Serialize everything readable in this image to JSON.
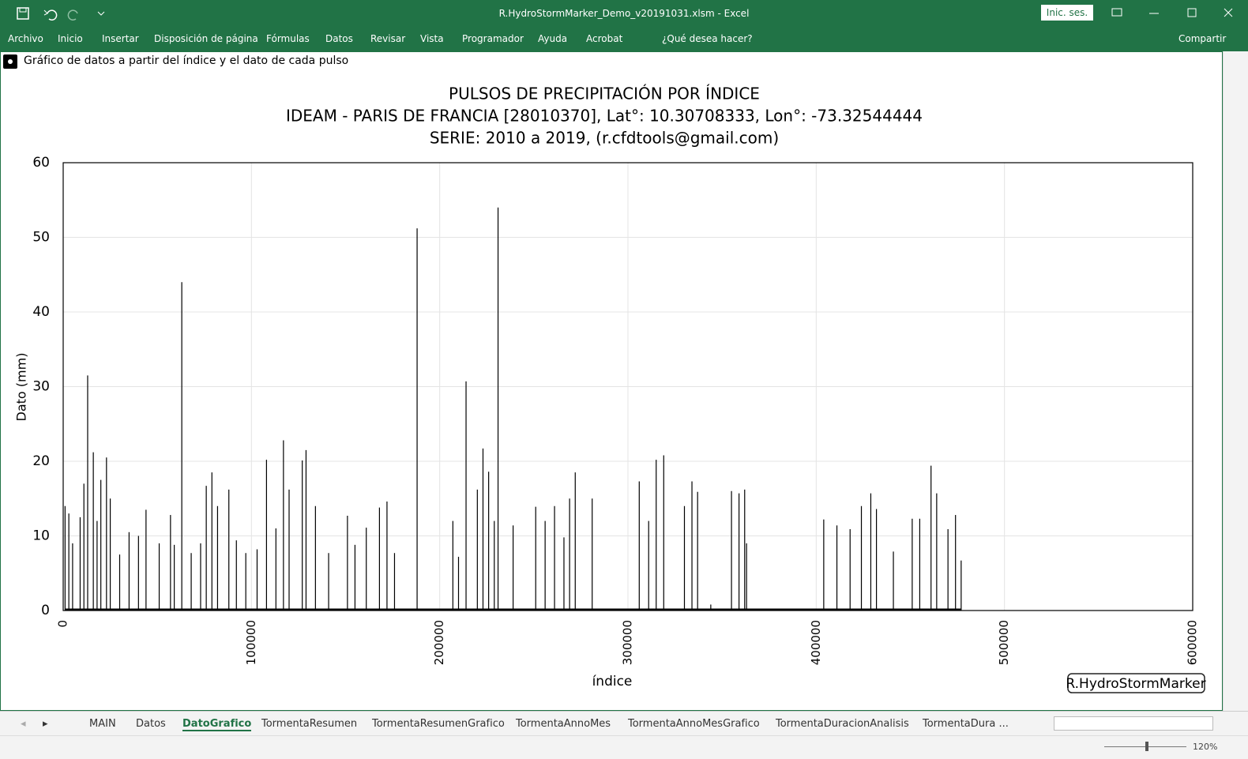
{
  "window": {
    "title": "R.HydroStormMarker_Demo_v20191031.xlsm  -  Excel",
    "signin": "Inic. ses."
  },
  "ribbon": {
    "tabs": [
      "Archivo",
      "Inicio",
      "Insertar",
      "Disposición de página",
      "Fórmulas",
      "Datos",
      "Revisar",
      "Vista",
      "Programador",
      "Ayuda",
      "Acrobat"
    ],
    "search": "¿Qué desea hacer?",
    "share": "Compartir"
  },
  "sheet": {
    "caption": "Gráfico de datos a partir del índice y el dato de cada pulso",
    "logo": "R.HydroStormMarker"
  },
  "chart_data": {
    "type": "stem",
    "title": [
      "PULSOS DE PRECIPITACIÓN POR ÍNDICE",
      "IDEAM - PARIS DE FRANCIA [28010370], Lat°: 10.30708333, Lon°: -73.32544444",
      "SERIE: 2010 a 2019, (r.cfdtools@gmail.com)"
    ],
    "x_label": "índice",
    "y_label": "Dato (mm)",
    "x": [
      1000,
      3000,
      5000,
      9000,
      11000,
      13000,
      16000,
      18000,
      20000,
      23000,
      25000,
      30000,
      35000,
      40000,
      44000,
      51000,
      57000,
      59000,
      63000,
      68000,
      73000,
      76000,
      79000,
      82000,
      88000,
      92000,
      97000,
      103000,
      108000,
      113000,
      117000,
      120000,
      127000,
      129000,
      134000,
      141000,
      151000,
      155000,
      161000,
      168000,
      172000,
      176000,
      188000,
      207000,
      210000,
      214000,
      220000,
      223000,
      226000,
      229000,
      231000,
      239000,
      251000,
      256000,
      261000,
      266000,
      269000,
      272000,
      281000,
      306000,
      311000,
      315000,
      319000,
      330000,
      334000,
      337000,
      344000,
      355000,
      359000,
      362000,
      363000,
      404000,
      411000,
      418000,
      424000,
      429000,
      432000,
      441000,
      451000,
      455000,
      461000,
      464000,
      470000,
      474000,
      477000
    ],
    "values": [
      14,
      13,
      9,
      12.5,
      17,
      31.5,
      21.2,
      12,
      17.5,
      20.5,
      15,
      7.5,
      10.5,
      10,
      13.5,
      9,
      12.8,
      8.8,
      44,
      7.7,
      9,
      16.7,
      18.5,
      14,
      16.2,
      9.4,
      7.7,
      8.2,
      20.2,
      11,
      22.8,
      16.2,
      20.1,
      21.5,
      14,
      7.7,
      12.7,
      8.8,
      11.1,
      13.8,
      14.6,
      7.7,
      51.2,
      12,
      7.2,
      30.7,
      16.2,
      21.7,
      18.6,
      12,
      54,
      11.4,
      13.9,
      12,
      14,
      9.8,
      15,
      18.5,
      15,
      17.3,
      12,
      20.2,
      20.8,
      14,
      17.3,
      15.9,
      0.8,
      16,
      15.7,
      16.2,
      9,
      12.2,
      11.4,
      10.9,
      14,
      15.7,
      13.6,
      7.9,
      12.3,
      12.3,
      19.4,
      15.7,
      10.9,
      12.8,
      6.7
    ],
    "color": "#000000",
    "xlim": [
      0,
      600000
    ],
    "xticks": [
      0,
      100000,
      200000,
      300000,
      400000,
      500000,
      600000
    ],
    "ylim": [
      0,
      60
    ],
    "yticks": [
      0,
      10,
      20,
      30,
      40,
      50,
      60
    ],
    "grid": true
  },
  "tabs": {
    "items": [
      "MAIN",
      "Datos",
      "DatoGrafico",
      "TormentaResumen",
      "TormentaResumenGrafico",
      "TormentaAnnoMes",
      "TormentaAnnoMesGrafico",
      "TormentaDuracionAnalisis",
      "TormentaDura ..."
    ],
    "active": "DatoGrafico"
  },
  "status": {
    "zoom": "120%"
  }
}
